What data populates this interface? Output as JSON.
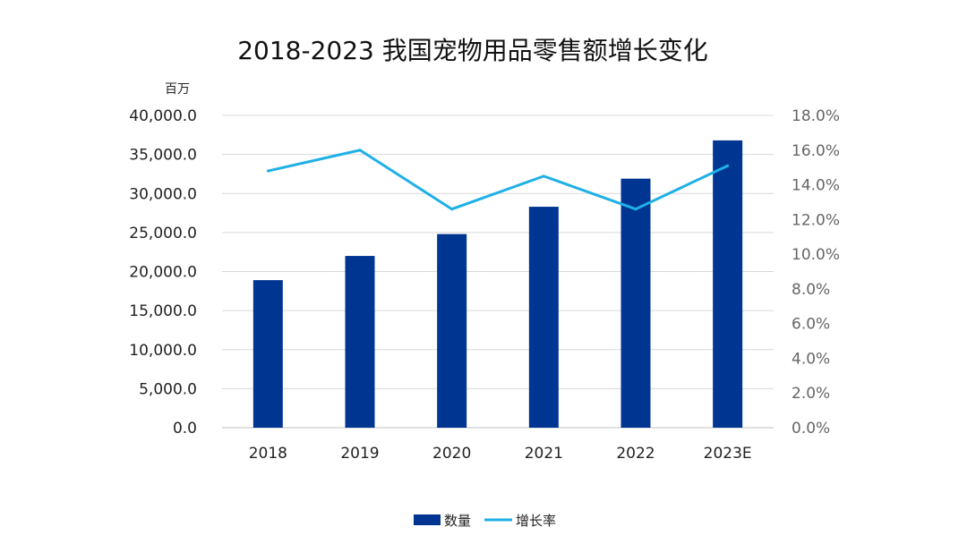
{
  "chart_data": {
    "type": "bar",
    "title": "2018-2023 我国宠物用品零售额增长变化",
    "y_unit": "百万",
    "categories": [
      "2018",
      "2019",
      "2020",
      "2021",
      "2022",
      "2023E"
    ],
    "series": [
      {
        "name": "数量",
        "type": "bar",
        "axis": "left",
        "color": "#003591",
        "values": [
          18900,
          22000,
          24800,
          28300,
          31900,
          36800
        ]
      },
      {
        "name": "增长率",
        "type": "line",
        "axis": "right",
        "color": "#1EB0E6",
        "values": [
          14.8,
          16.0,
          12.6,
          14.5,
          12.6,
          15.1
        ]
      }
    ],
    "ylim": [
      0,
      40000
    ],
    "y_ticks": [
      "0.0",
      "5,000.0",
      "10,000.0",
      "15,000.0",
      "20,000.0",
      "25,000.0",
      "30,000.0",
      "35,000.0",
      "40,000.0"
    ],
    "y2lim": [
      0,
      18
    ],
    "y2_ticks": [
      "0.0%",
      "2.0%",
      "4.0%",
      "6.0%",
      "8.0%",
      "10.0%",
      "12.0%",
      "14.0%",
      "16.0%",
      "18.0%"
    ],
    "grid": true,
    "legend_position": "bottom"
  }
}
